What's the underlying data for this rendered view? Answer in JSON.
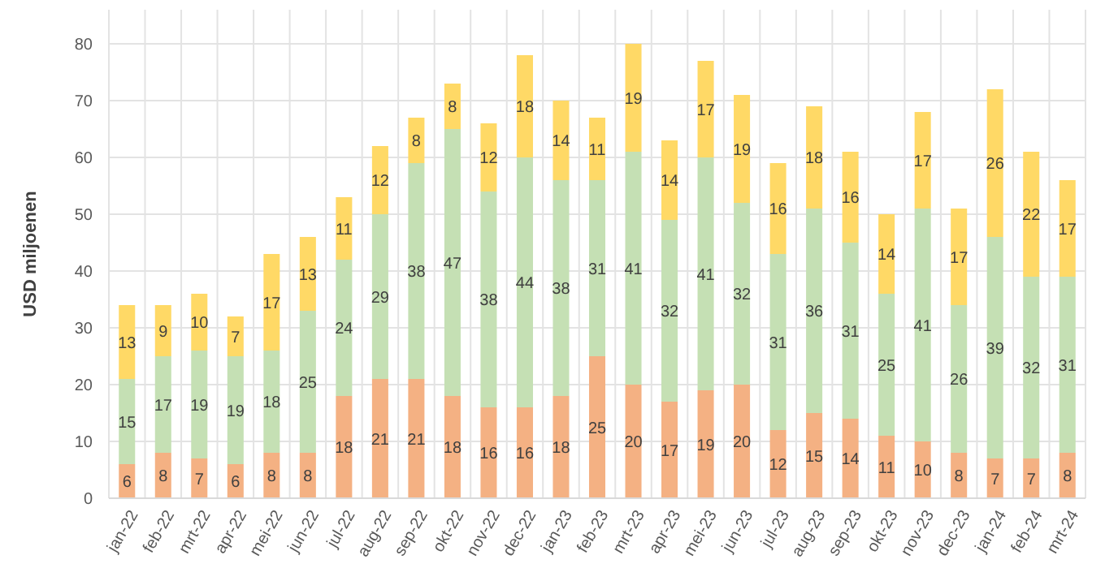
{
  "chart_data": {
    "type": "bar",
    "stacked": true,
    "ylabel": "USD miljoenen",
    "categories": [
      "jan-22",
      "feb-22",
      "mrt-22",
      "apr-22",
      "mei-22",
      "jun-22",
      "jul-22",
      "aug-22",
      "sep-22",
      "okt-22",
      "nov-22",
      "dec-22",
      "jan-23",
      "feb-23",
      "mrt-23",
      "apr-23",
      "mei-23",
      "jun-23",
      "jul-23",
      "aug-23",
      "sep-23",
      "okt-23",
      "nov-23",
      "dec-23",
      "jan-24",
      "feb-24",
      "mrt-24"
    ],
    "series": [
      {
        "color": "#f4b183",
        "values": [
          6,
          8,
          7,
          6,
          8,
          8,
          18,
          21,
          21,
          18,
          16,
          16,
          18,
          25,
          20,
          17,
          19,
          20,
          12,
          15,
          14,
          11,
          10,
          8,
          7,
          7,
          8
        ]
      },
      {
        "color": "#c5e0b4",
        "values": [
          15,
          17,
          19,
          19,
          18,
          25,
          24,
          29,
          38,
          47,
          38,
          44,
          38,
          31,
          41,
          32,
          41,
          32,
          31,
          36,
          31,
          25,
          41,
          26,
          39,
          32,
          31
        ]
      },
      {
        "color": "#ffd966",
        "values": [
          13,
          9,
          10,
          7,
          17,
          13,
          11,
          12,
          8,
          8,
          12,
          18,
          14,
          11,
          19,
          14,
          17,
          19,
          16,
          18,
          16,
          14,
          17,
          17,
          26,
          22,
          17
        ]
      }
    ],
    "ylim": [
      0,
      86
    ],
    "yticks": [
      0,
      10,
      20,
      30,
      40,
      50,
      60,
      70,
      80
    ],
    "grid": true,
    "data_labels": true
  }
}
